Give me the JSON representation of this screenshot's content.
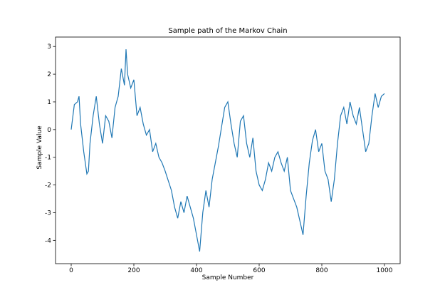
{
  "chart_data": {
    "type": "line",
    "title": "Sample path of the Markov Chain",
    "x_label": "Sample Number",
    "y_label": "Sample Value",
    "x": [
      0,
      10,
      20,
      25,
      30,
      40,
      50,
      55,
      60,
      70,
      80,
      90,
      100,
      110,
      120,
      130,
      140,
      150,
      160,
      170,
      175,
      180,
      190,
      200,
      210,
      220,
      230,
      240,
      250,
      260,
      270,
      280,
      290,
      300,
      320,
      330,
      340,
      350,
      360,
      370,
      380,
      390,
      400,
      410,
      420,
      430,
      440,
      450,
      460,
      470,
      480,
      490,
      500,
      510,
      520,
      530,
      540,
      550,
      560,
      570,
      580,
      590,
      600,
      610,
      620,
      630,
      640,
      650,
      660,
      670,
      680,
      690,
      700,
      710,
      720,
      730,
      740,
      750,
      760,
      770,
      780,
      790,
      800,
      810,
      820,
      830,
      840,
      850,
      860,
      870,
      880,
      890,
      900,
      910,
      920,
      930,
      940,
      950,
      960,
      970,
      980,
      990,
      1000
    ],
    "series": [
      {
        "color": "#1f77b4",
        "values": [
          0.0,
          0.9,
          1.0,
          1.2,
          0.2,
          -0.8,
          -1.6,
          -1.5,
          -0.5,
          0.5,
          1.2,
          0.2,
          -0.5,
          0.5,
          0.3,
          -0.3,
          0.8,
          1.2,
          2.2,
          1.6,
          2.9,
          2.0,
          1.5,
          1.8,
          0.5,
          0.8,
          0.2,
          -0.2,
          0.0,
          -0.8,
          -0.5,
          -1.0,
          -1.2,
          -1.5,
          -2.2,
          -2.8,
          -3.2,
          -2.6,
          -3.0,
          -2.4,
          -2.8,
          -3.2,
          -3.8,
          -4.4,
          -3.0,
          -2.2,
          -2.8,
          -1.8,
          -1.2,
          -0.6,
          0.1,
          0.8,
          1.0,
          0.2,
          -0.5,
          -1.0,
          0.3,
          0.5,
          -0.5,
          -1.0,
          -0.3,
          -1.5,
          -2.0,
          -2.2,
          -1.8,
          -1.2,
          -1.5,
          -1.0,
          -0.8,
          -1.2,
          -1.5,
          -1.0,
          -2.2,
          -2.5,
          -2.8,
          -3.3,
          -3.8,
          -2.4,
          -1.2,
          -0.4,
          0.0,
          -0.8,
          -0.5,
          -1.5,
          -1.8,
          -2.6,
          -1.8,
          -0.5,
          0.5,
          0.8,
          0.2,
          1.0,
          0.5,
          0.2,
          0.8,
          0.0,
          -0.8,
          -0.5,
          0.5,
          1.3,
          0.8,
          1.2,
          1.3
        ]
      }
    ],
    "xlim": [
      -50,
      1050
    ],
    "ylim": [
      -4.84,
      3.34
    ],
    "xticks": [
      0,
      200,
      400,
      600,
      800,
      1000
    ],
    "yticks": [
      -4,
      -3,
      -2,
      -1,
      0,
      1,
      2,
      3
    ]
  }
}
